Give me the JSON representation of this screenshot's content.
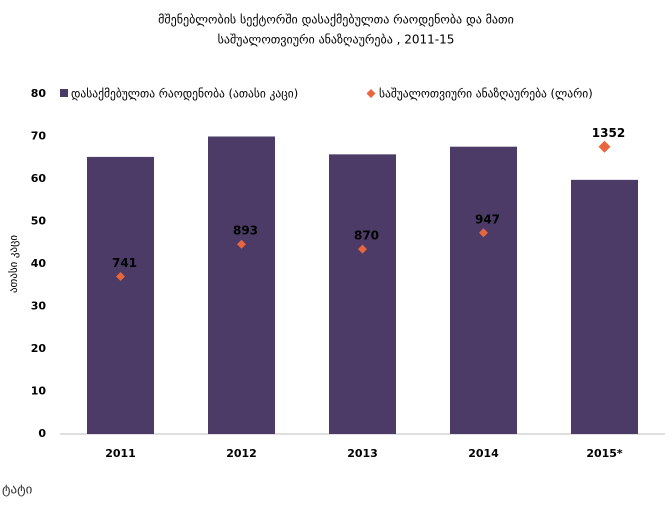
{
  "chart_data": {
    "type": "bar_line",
    "title": [
      "მშენებლობის სექტორში დასაქმებულთა რაოდენობა და მათი",
      "საშუალოთვიური ანაზღაურება , 2011-15"
    ],
    "ylabel": "ათასი კაცი",
    "source": "ტატი",
    "categories": [
      "2011",
      "2012",
      "2013",
      "2014",
      "2015*"
    ],
    "series": [
      {
        "name": "დასაქმებულთა რაოდენობა (ათასი კაცი)",
        "color": "#4b3b66",
        "kind": "bar",
        "values": [
          65.2,
          70,
          65.8,
          67.6,
          59.8
        ]
      },
      {
        "name": "საშუალოთვიური ანაზღაურება (ლარი)",
        "color": "#e8663d",
        "kind": "marker",
        "axis": "y2",
        "values": [
          741,
          893,
          870,
          947,
          1352
        ]
      }
    ],
    "ylim": [
      0,
      80
    ],
    "yticks": [
      0,
      10,
      20,
      30,
      40,
      50,
      60,
      70,
      80
    ],
    "y2lim": [
      0,
      1600
    ],
    "grid": false,
    "legend": "top"
  }
}
